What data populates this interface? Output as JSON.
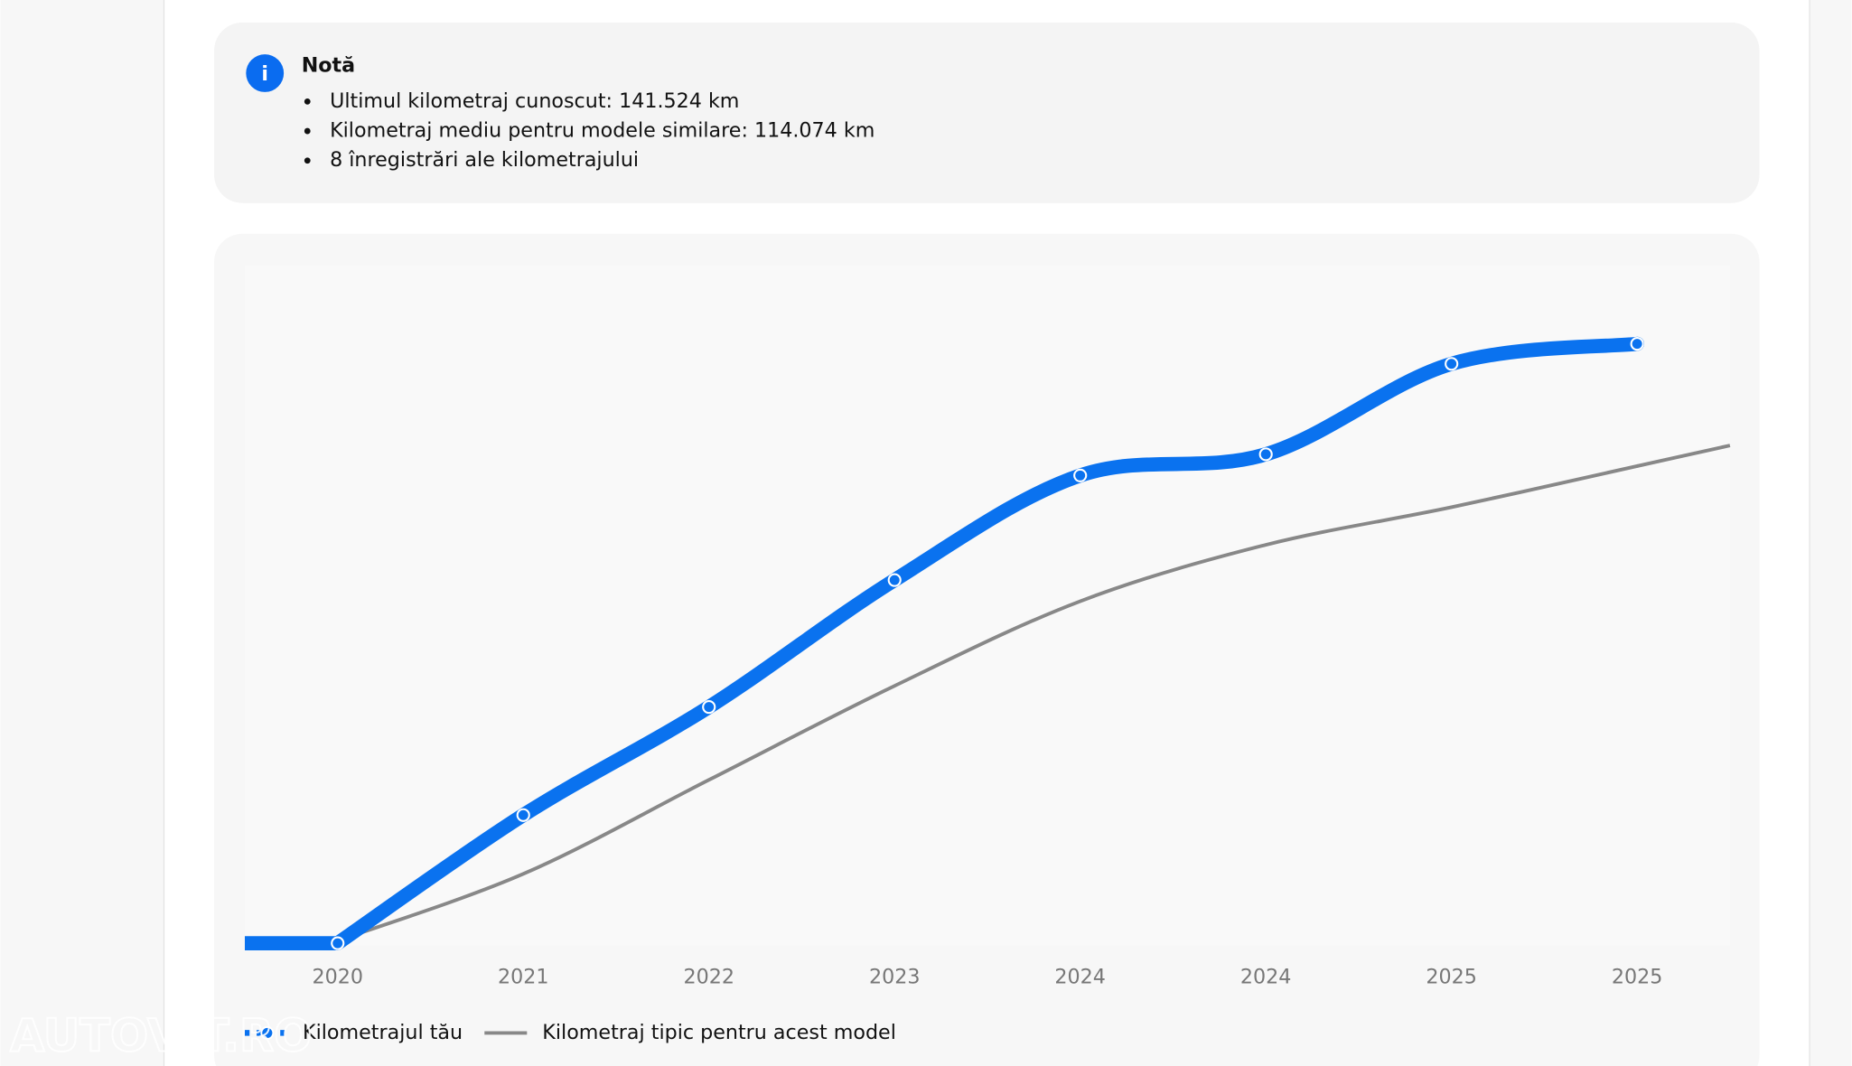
{
  "note": {
    "title": "Notă",
    "items": [
      "Ultimul kilometraj cunoscut: 141.524 km",
      "Kilometraj mediu pentru modele similare: 114.074 km",
      "8 înregistrări ale kilometrajului"
    ]
  },
  "watermark": "AUTOVIT.RO",
  "chart_data": {
    "type": "line",
    "categories": [
      "2020",
      "2021",
      "2022",
      "2023",
      "2024",
      "2024",
      "2025",
      "2025"
    ],
    "series": [
      {
        "name": "Kilometrajul tău",
        "color": "#0a72ef",
        "values": [
          0,
          30250,
          55780,
          85750,
          110450,
          115440,
          136800,
          141524
        ]
      },
      {
        "name": "Kilometraj tipic pentru acest model",
        "color": "#888888",
        "values": [
          600,
          16370,
          38570,
          60770,
          80750,
          94070,
          102950,
          112670
        ]
      }
    ],
    "ylim": [
      0,
      160000
    ]
  }
}
